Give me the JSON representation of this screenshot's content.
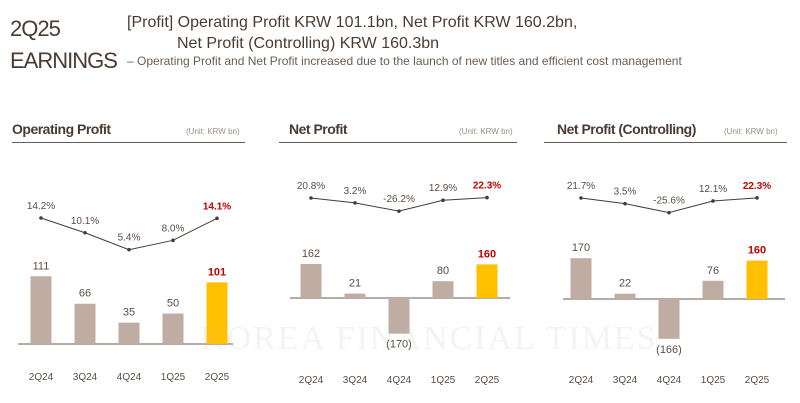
{
  "header": {
    "line1": "2Q25",
    "line2": "EARNINGS",
    "headline1": "[Profit] Operating Profit KRW 101.1bn, Net Profit KRW 160.2bn,",
    "headline2": "Net Profit (Controlling) KRW 160.3bn",
    "subline": "– Operating Profit and Net Profit increased due to the launch of new titles and efficient cost management"
  },
  "watermark": "KOREA FINANCIAL TIMES",
  "colors": {
    "bar": "#bfada4",
    "highlight_bar": "#ffc000",
    "highlight_text": "#c00000",
    "line": "#4a3b32"
  },
  "chart_data": [
    {
      "type": "bar+line",
      "title": "Operating Profit",
      "unit": "(Unit: KRW bn)",
      "categories": [
        "2Q24",
        "3Q24",
        "4Q24",
        "1Q25",
        "2Q25"
      ],
      "values": [
        111,
        66,
        35,
        50,
        101
      ],
      "value_labels": [
        "111",
        "66",
        "35",
        "50",
        "101"
      ],
      "margin_values": [
        14.2,
        10.1,
        5.4,
        8.0,
        14.1
      ],
      "margin_labels": [
        "14.2%",
        "10.1%",
        "5.4%",
        "8.0%",
        "14.1%"
      ],
      "highlight_index": 4
    },
    {
      "type": "bar+line",
      "title": "Net Profit",
      "unit": "(Unit: KRW bn)",
      "categories": [
        "2Q24",
        "3Q24",
        "4Q24",
        "1Q25",
        "2Q25"
      ],
      "values": [
        162,
        21,
        -170,
        80,
        160
      ],
      "value_labels": [
        "162",
        "21",
        "(170)",
        "80",
        "160"
      ],
      "margin_values": [
        20.8,
        3.2,
        -26.2,
        12.9,
        22.3
      ],
      "margin_labels": [
        "20.8%",
        "3.2%",
        "-26.2%",
        "12.9%",
        "22.3%"
      ],
      "highlight_index": 4
    },
    {
      "type": "bar+line",
      "title": "Net Profit (Controlling)",
      "unit": "(Unit: KRW bn)",
      "categories": [
        "2Q24",
        "3Q24",
        "4Q24",
        "1Q25",
        "2Q25"
      ],
      "values": [
        170,
        22,
        -166,
        76,
        160
      ],
      "value_labels": [
        "170",
        "22",
        "(166)",
        "76",
        "160"
      ],
      "margin_values": [
        21.7,
        3.5,
        -25.6,
        12.1,
        22.3
      ],
      "margin_labels": [
        "21.7%",
        "3.5%",
        "-25.6%",
        "12.1%",
        "22.3%"
      ],
      "highlight_index": 4
    }
  ]
}
